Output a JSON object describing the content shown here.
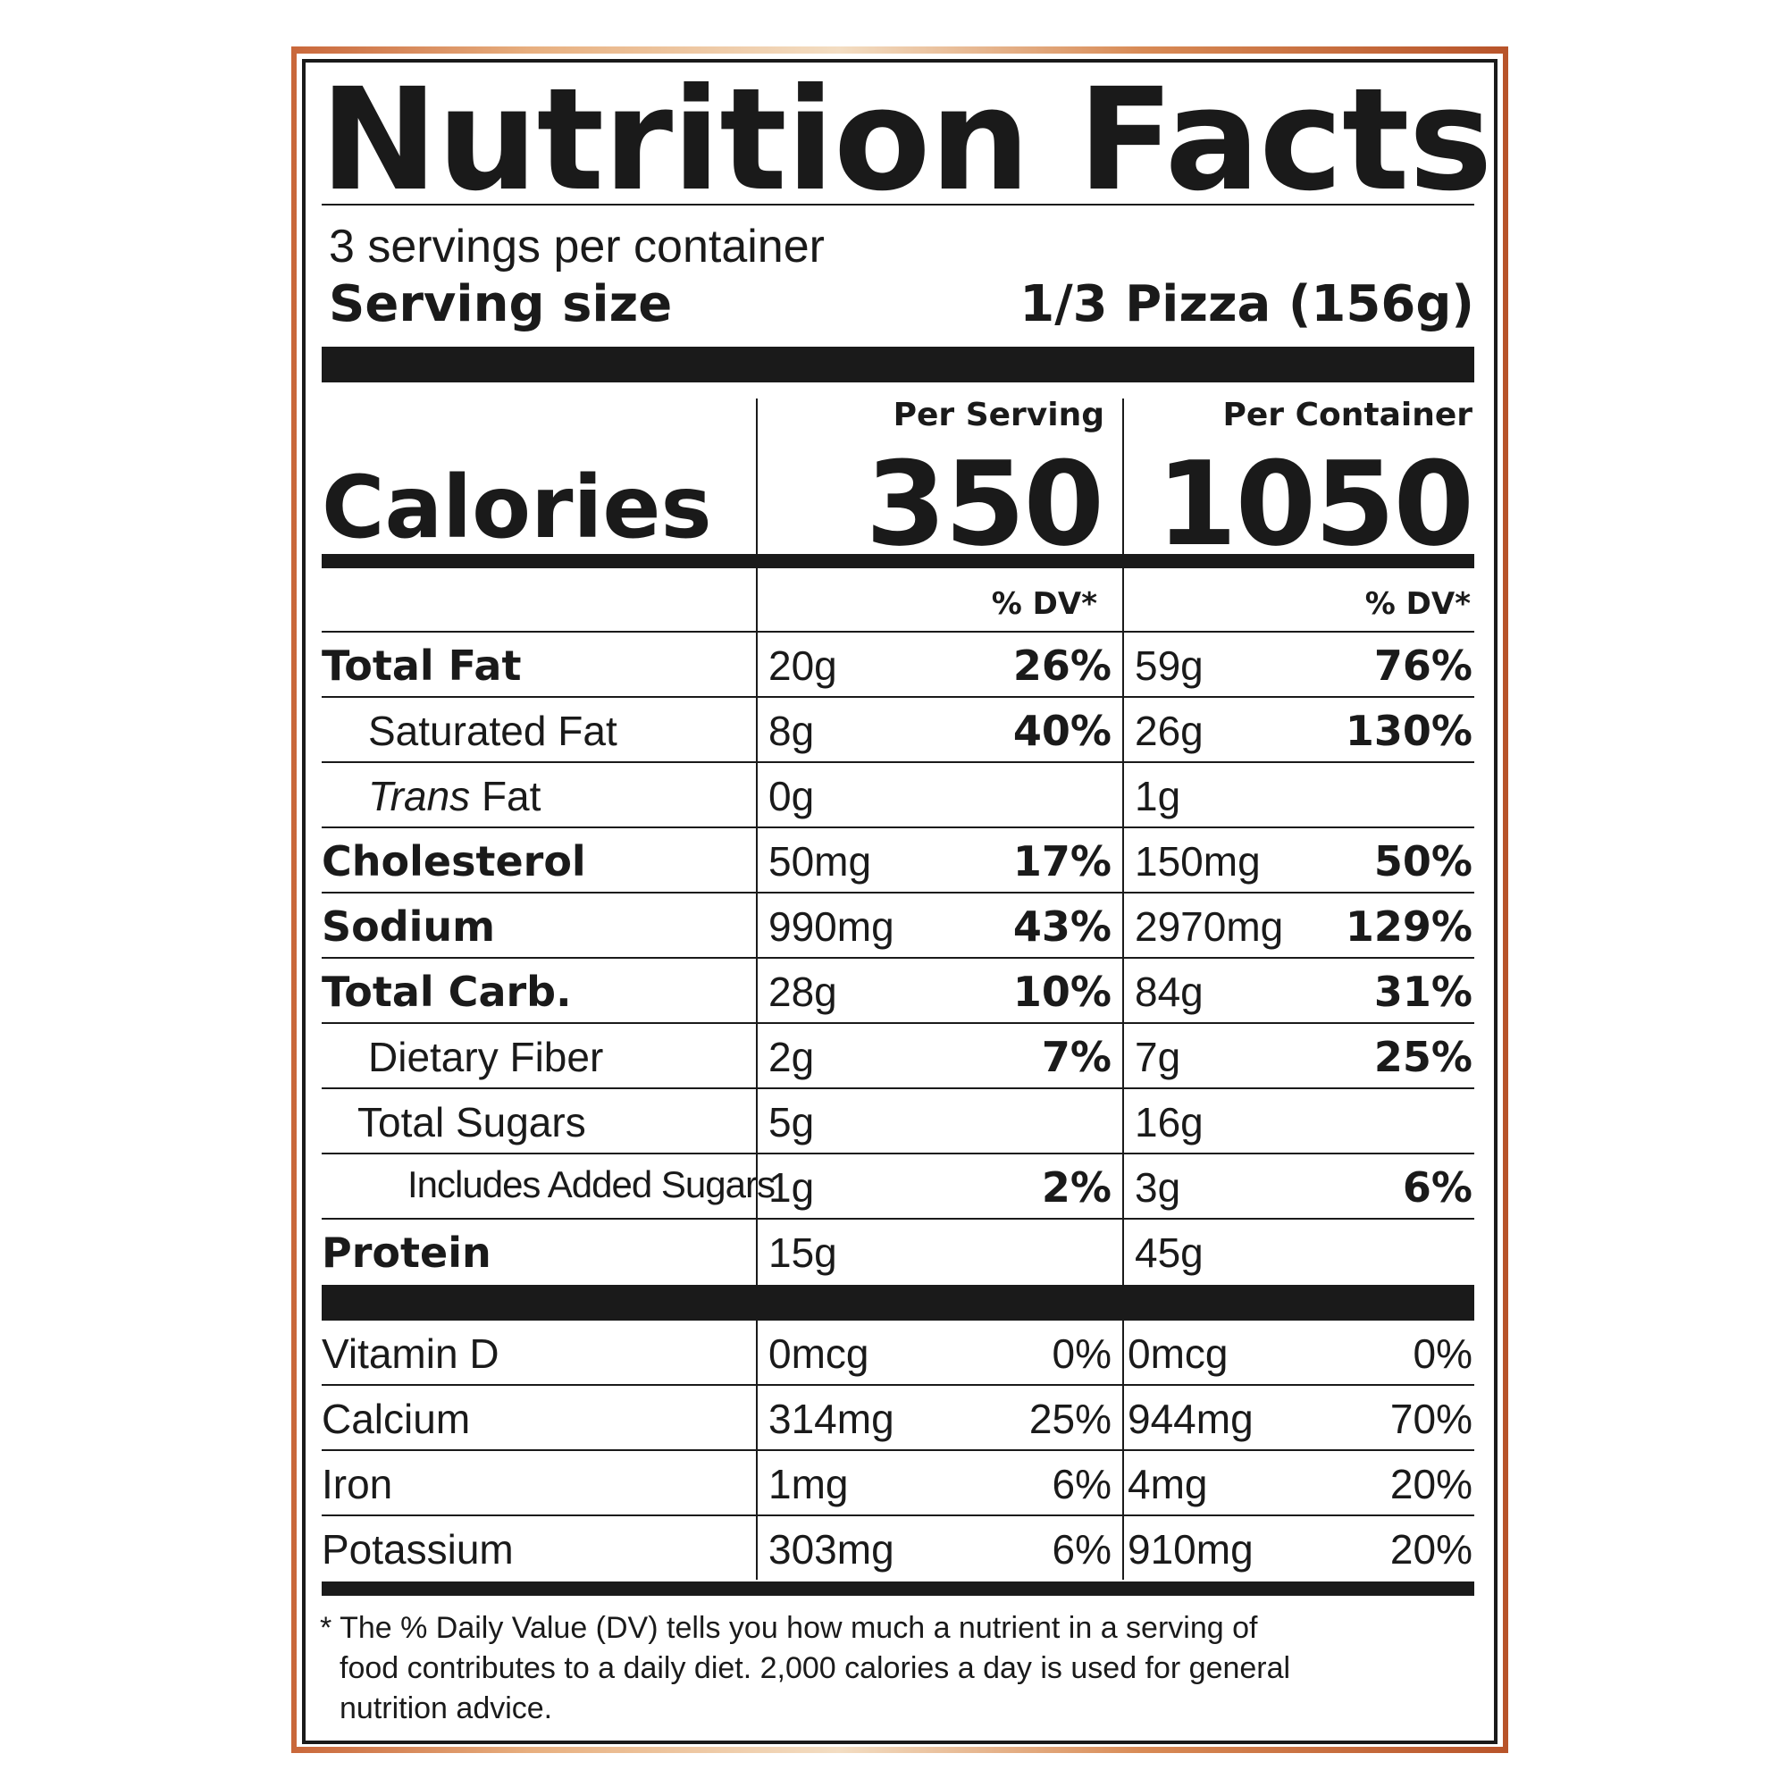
{
  "title": "Nutrition Facts",
  "servings_per_container": "3 servings per container",
  "serving_size_label": "Serving size",
  "serving_size_value": "1/3 Pizza (156g)",
  "columns": {
    "per_serving": "Per Serving",
    "per_container": "Per Container"
  },
  "calories": {
    "label": "Calories",
    "per_serving": "350",
    "per_container": "1050"
  },
  "dv_header": "% DV*",
  "nutrients": [
    {
      "name": "Total Fat",
      "serving_amount": "20g",
      "serving_dv": "26%",
      "container_amount": "59g",
      "container_dv": "76%"
    },
    {
      "name": "Saturated Fat",
      "serving_amount": "8g",
      "serving_dv": "40%",
      "container_amount": "26g",
      "container_dv": "130%"
    },
    {
      "name_italic": "Trans",
      "name": " Fat",
      "serving_amount": "0g",
      "serving_dv": "",
      "container_amount": "1g",
      "container_dv": ""
    },
    {
      "name": "Cholesterol",
      "serving_amount": "50mg",
      "serving_dv": "17%",
      "container_amount": "150mg",
      "container_dv": "50%"
    },
    {
      "name": "Sodium",
      "serving_amount": "990mg",
      "serving_dv": "43%",
      "container_amount": "2970mg",
      "container_dv": "129%"
    },
    {
      "name": "Total Carb.",
      "serving_amount": "28g",
      "serving_dv": "10%",
      "container_amount": "84g",
      "container_dv": "31%"
    },
    {
      "name": "Dietary Fiber",
      "serving_amount": "2g",
      "serving_dv": "7%",
      "container_amount": "7g",
      "container_dv": "25%"
    },
    {
      "name": "Total Sugars",
      "serving_amount": "5g",
      "serving_dv": "",
      "container_amount": "16g",
      "container_dv": ""
    },
    {
      "name": "Includes Added Sugars",
      "serving_amount": "1g",
      "serving_dv": "2%",
      "container_amount": "3g",
      "container_dv": "6%"
    },
    {
      "name": "Protein",
      "serving_amount": "15g",
      "serving_dv": "",
      "container_amount": "45g",
      "container_dv": ""
    }
  ],
  "vitamins": [
    {
      "name": "Vitamin D",
      "serving_amount": "0mcg",
      "serving_dv": "0%",
      "container_amount": "0mcg",
      "container_dv": "0%"
    },
    {
      "name": "Calcium",
      "serving_amount": "314mg",
      "serving_dv": "25%",
      "container_amount": "944mg",
      "container_dv": "70%"
    },
    {
      "name": "Iron",
      "serving_amount": "1mg",
      "serving_dv": "6%",
      "container_amount": "4mg",
      "container_dv": "20%"
    },
    {
      "name": "Potassium",
      "serving_amount": "303mg",
      "serving_dv": "6%",
      "container_amount": "910mg",
      "container_dv": "20%"
    }
  ],
  "footnote": {
    "line1": "* The % Daily Value (DV) tells you how much a nutrient in a serving of",
    "line2": "food contributes to a daily diet. 2,000 calories a day is used for general",
    "line3": "nutrition advice."
  }
}
